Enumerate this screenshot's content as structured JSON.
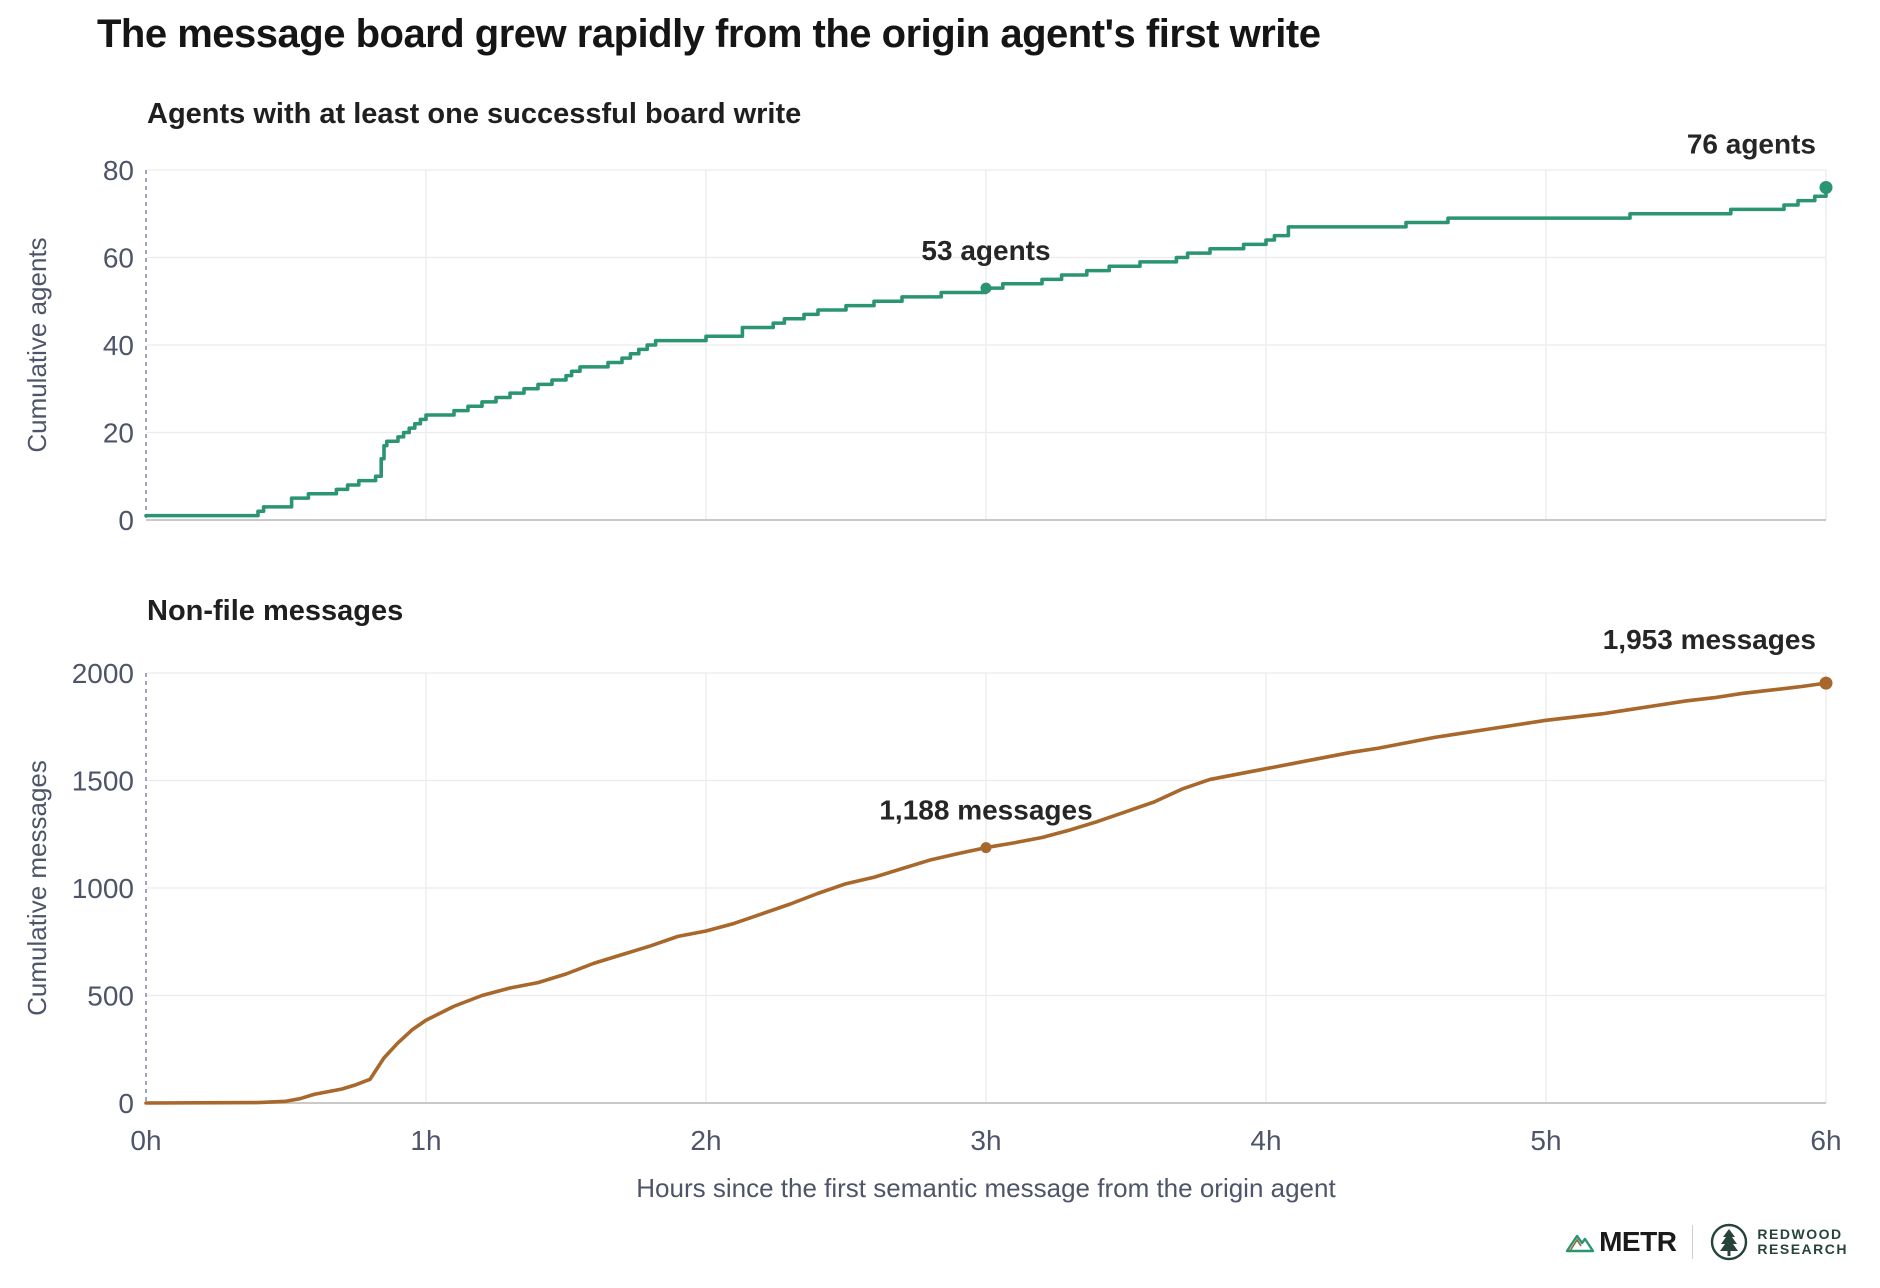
{
  "title": "The message board grew rapidly from the origin agent's first write",
  "x_axis": {
    "label": "Hours since the first semantic message from the origin agent",
    "ticks": [
      "0h",
      "1h",
      "2h",
      "3h",
      "4h",
      "5h",
      "6h"
    ]
  },
  "logos": {
    "metr": "METR",
    "redwood_line1": "REDWOOD",
    "redwood_line2": "RESEARCH"
  },
  "chart_data": [
    {
      "type": "line",
      "subtitle": "Agents with at least one successful board write",
      "ylabel": "Cumulative agents",
      "xlabel": "Hours since the first semantic message from the origin agent",
      "xlim": [
        0,
        6
      ],
      "ylim": [
        0,
        80
      ],
      "yticks": [
        0,
        20,
        40,
        60,
        80
      ],
      "step": true,
      "color": "#2a9473",
      "x": [
        0,
        0.4,
        0.42,
        0.52,
        0.58,
        0.68,
        0.72,
        0.76,
        0.82,
        0.84,
        0.85,
        0.86,
        0.88,
        0.9,
        0.92,
        0.94,
        0.96,
        0.98,
        1.0,
        1.1,
        1.15,
        1.2,
        1.25,
        1.3,
        1.35,
        1.4,
        1.45,
        1.5,
        1.52,
        1.55,
        1.65,
        1.7,
        1.73,
        1.76,
        1.79,
        1.82,
        2.0,
        2.13,
        2.24,
        2.28,
        2.35,
        2.4,
        2.5,
        2.6,
        2.7,
        2.84,
        3.0,
        3.06,
        3.2,
        3.27,
        3.36,
        3.44,
        3.55,
        3.68,
        3.72,
        3.8,
        3.92,
        4.0,
        4.03,
        4.08,
        4.5,
        4.65,
        5.0,
        5.3,
        5.66,
        5.85,
        5.9,
        5.96,
        6.0
      ],
      "values": [
        1,
        2,
        3,
        5,
        6,
        7,
        8,
        9,
        10,
        14,
        17,
        18,
        18,
        19,
        20,
        21,
        22,
        23,
        24,
        25,
        26,
        27,
        28,
        29,
        30,
        31,
        32,
        33,
        34,
        35,
        36,
        37,
        38,
        39,
        40,
        41,
        42,
        44,
        45,
        46,
        47,
        48,
        49,
        50,
        51,
        52,
        53,
        54,
        55,
        56,
        57,
        58,
        59,
        60,
        61,
        62,
        63,
        64,
        65,
        67,
        68,
        69,
        69,
        70,
        71,
        72,
        73,
        74,
        76
      ],
      "annotations": [
        {
          "x": 3.0,
          "y": 53,
          "label": "53 agents"
        },
        {
          "x": 6.0,
          "y": 76,
          "label": "76 agents"
        }
      ]
    },
    {
      "type": "line",
      "subtitle": "Non-file messages",
      "ylabel": "Cumulative messages",
      "xlabel": "Hours since the first semantic message from the origin agent",
      "xlim": [
        0,
        6
      ],
      "ylim": [
        0,
        2000
      ],
      "yticks": [
        0,
        500,
        1000,
        1500,
        2000
      ],
      "step": false,
      "color": "#a8672b",
      "x": [
        0,
        0.4,
        0.5,
        0.55,
        0.6,
        0.7,
        0.75,
        0.8,
        0.85,
        0.9,
        0.95,
        1.0,
        1.1,
        1.2,
        1.3,
        1.4,
        1.5,
        1.6,
        1.7,
        1.8,
        1.9,
        2.0,
        2.1,
        2.2,
        2.3,
        2.4,
        2.5,
        2.6,
        2.7,
        2.8,
        2.9,
        3.0,
        3.1,
        3.2,
        3.3,
        3.4,
        3.5,
        3.6,
        3.7,
        3.8,
        3.9,
        4.0,
        4.1,
        4.2,
        4.3,
        4.4,
        4.5,
        4.6,
        4.7,
        4.8,
        4.9,
        5.0,
        5.1,
        5.2,
        5.3,
        5.4,
        5.5,
        5.6,
        5.7,
        5.8,
        5.9,
        6.0
      ],
      "values": [
        0,
        2,
        8,
        20,
        40,
        65,
        85,
        110,
        210,
        280,
        340,
        385,
        450,
        500,
        535,
        560,
        600,
        650,
        690,
        730,
        775,
        800,
        835,
        880,
        925,
        975,
        1020,
        1050,
        1090,
        1130,
        1160,
        1188,
        1210,
        1235,
        1270,
        1310,
        1355,
        1400,
        1460,
        1505,
        1530,
        1555,
        1580,
        1605,
        1630,
        1650,
        1675,
        1700,
        1720,
        1740,
        1760,
        1780,
        1795,
        1810,
        1830,
        1850,
        1870,
        1885,
        1905,
        1920,
        1935,
        1953
      ],
      "annotations": [
        {
          "x": 3.0,
          "y": 1188,
          "label": "1,188 messages"
        },
        {
          "x": 6.0,
          "y": 1953,
          "label": "1,953 messages"
        }
      ]
    }
  ]
}
